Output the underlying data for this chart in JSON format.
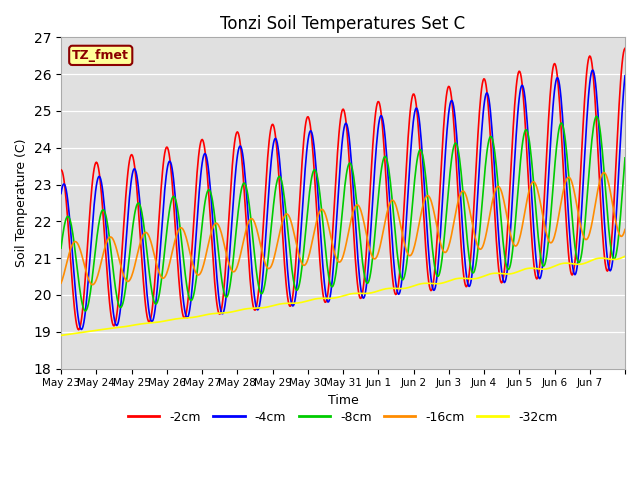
{
  "title": "Tonzi Soil Temperatures Set C",
  "xlabel": "Time",
  "ylabel": "Soil Temperature (C)",
  "ylim": [
    18.0,
    27.0
  ],
  "yticks": [
    18.0,
    19.0,
    20.0,
    21.0,
    22.0,
    23.0,
    24.0,
    25.0,
    26.0,
    27.0
  ],
  "annotation_label": "TZ_fmet",
  "annotation_color": "#8B0000",
  "annotation_bg": "#FFFF99",
  "bg_color": "#E0E0E0",
  "line_colors": {
    "-2cm": "#FF0000",
    "-4cm": "#0000FF",
    "-8cm": "#00CC00",
    "-16cm": "#FF8C00",
    "-32cm": "#FFFF00"
  },
  "line_width": 1.2,
  "x_tick_labels": [
    "May 23",
    "May 24",
    "May 25",
    "May 26",
    "May 27",
    "May 28",
    "May 29",
    "May 30",
    "May 31",
    "Jun 1",
    "Jun 2",
    "Jun 3",
    "Jun 4",
    "Jun 5",
    "Jun 6",
    "Jun 7"
  ],
  "n_days": 16,
  "pts_per_day": 48
}
